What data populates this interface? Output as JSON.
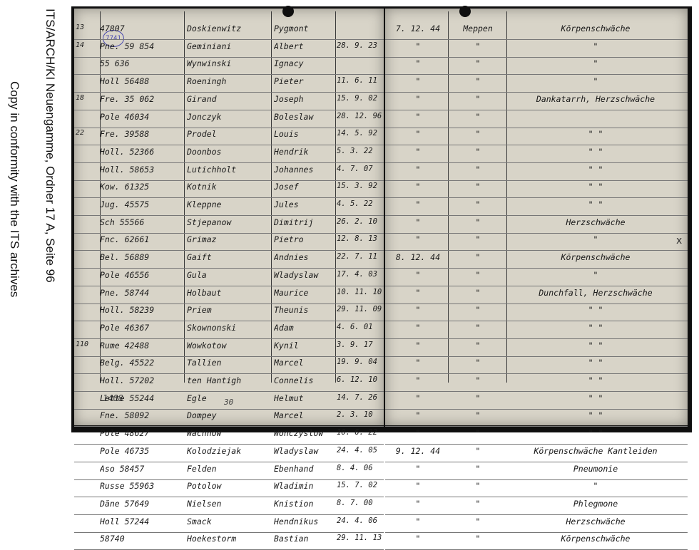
{
  "side_text": {
    "line1": "ITS/ARCH/KI Neuengamme, Ordner 17 A, Seite 96",
    "line2": "Copy in conformity with the ITS archives"
  },
  "stamp": "7741",
  "left_rows": [
    {
      "mark": "13",
      "number": "47807",
      "surname": "Doskienwitz",
      "firstname": "Pygmont",
      "dob": ""
    },
    {
      "mark": "14",
      "number": "Pne. 59 854",
      "surname": "Geminiani",
      "firstname": "Albert",
      "dob": "28. 9. 23"
    },
    {
      "mark": "",
      "number": "55 636",
      "surname": "Wynwinski",
      "firstname": "Ignacy",
      "dob": ""
    },
    {
      "mark": "",
      "number": "Holl 56488",
      "surname": "Roeningh",
      "firstname": "Pieter",
      "dob": "11. 6. 11"
    },
    {
      "mark": "18",
      "number": "Fre. 35 062",
      "surname": "Girand",
      "firstname": "Joseph",
      "dob": "15. 9. 02"
    },
    {
      "mark": "",
      "number": "Pole 46034",
      "surname": "Jonczyk",
      "firstname": "Boleslaw",
      "dob": "28. 12. 96"
    },
    {
      "mark": "22",
      "number": "Fre. 39588",
      "surname": "Prodel",
      "firstname": "Louis",
      "dob": "14. 5. 92"
    },
    {
      "mark": "",
      "number": "Holl. 52366",
      "surname": "Doonbos",
      "firstname": "Hendrik",
      "dob": "5. 3. 22"
    },
    {
      "mark": "",
      "number": "Holl. 58653",
      "surname": "Lutichholt",
      "firstname": "Johannes",
      "dob": "4. 7. 07"
    },
    {
      "mark": "",
      "number": "Kow. 61325",
      "surname": "Kotnik",
      "firstname": "Josef",
      "dob": "15. 3. 92"
    },
    {
      "mark": "",
      "number": "Jug. 45575",
      "surname": "Kleppne",
      "firstname": "Jules",
      "dob": "4. 5. 22"
    },
    {
      "mark": "",
      "number": "Sch 55566",
      "surname": "Stjepanow",
      "firstname": "Dimitrij",
      "dob": "26. 2. 10"
    },
    {
      "mark": "",
      "number": "Fnc. 62661",
      "surname": "Grimaz",
      "firstname": "Pietro",
      "dob": "12. 8. 13"
    },
    {
      "mark": "",
      "number": "Bel. 56889",
      "surname": "Gaift",
      "firstname": "Andnies",
      "dob": "22. 7. 11"
    },
    {
      "mark": "",
      "number": "Pole 46556",
      "surname": "Gula",
      "firstname": "Wladyslaw",
      "dob": "17. 4. 03"
    },
    {
      "mark": "",
      "number": "Pne. 58744",
      "surname": "Holbaut",
      "firstname": "Maurice",
      "dob": "10. 11. 10"
    },
    {
      "mark": "",
      "number": "Holl. 58239",
      "surname": "Priem",
      "firstname": "Theunis",
      "dob": "29. 11. 09"
    },
    {
      "mark": "",
      "number": "Pole 46367",
      "surname": "Skownonski",
      "firstname": "Adam",
      "dob": "4. 6. 01"
    },
    {
      "mark": "110",
      "number": "Rume 42488",
      "surname": "Wowkotow",
      "firstname": "Kynil",
      "dob": "3. 9. 17"
    },
    {
      "mark": "",
      "number": "Belg. 45522",
      "surname": "Tallien",
      "firstname": "Marcel",
      "dob": "19. 9. 04"
    },
    {
      "mark": "",
      "number": "Holl. 57202",
      "surname": "ten Hantigh",
      "firstname": "Connelis",
      "dob": "6. 12. 10"
    },
    {
      "mark": "",
      "number": "Lette 55244",
      "surname": "Egle",
      "firstname": "Helmut",
      "dob": "14. 7. 26"
    },
    {
      "mark": "",
      "number": "Fne. 58092",
      "surname": "Dompey",
      "firstname": "Marcel",
      "dob": "2. 3. 10"
    },
    {
      "mark": "",
      "number": "Pole 48627",
      "surname": "Wachnow",
      "firstname": "Wonczyslow",
      "dob": "10. 6. 22"
    },
    {
      "mark": "",
      "number": "Pole 46735",
      "surname": "Kolodziejak",
      "firstname": "Wladyslaw",
      "dob": "24. 4. 05"
    },
    {
      "mark": "",
      "number": "Aso 58457",
      "surname": "Felden",
      "firstname": "Ebenhand",
      "dob": "8. 4. 06"
    },
    {
      "mark": "",
      "number": "Russe 55963",
      "surname": "Potolow",
      "firstname": "Wladimin",
      "dob": "15. 7. 02"
    },
    {
      "mark": "",
      "number": "Däne 57649",
      "surname": "Nielsen",
      "firstname": "Knistion",
      "dob": "8. 7. 00"
    },
    {
      "mark": "",
      "number": "Holl 57244",
      "surname": "Smack",
      "firstname": "Hendnikus",
      "dob": "24. 4. 06"
    },
    {
      "mark": "",
      "number": "58740",
      "surname": "Hoekestorm",
      "firstname": "Bastian",
      "dob": "29. 11. 13"
    }
  ],
  "right_rows": [
    {
      "date": "7. 12. 44",
      "place": "Meppen",
      "cause": "Körpenschwäche"
    },
    {
      "date": "\"",
      "place": "\"",
      "cause": "\""
    },
    {
      "date": "\"",
      "place": "\"",
      "cause": "\""
    },
    {
      "date": "\"",
      "place": "\"",
      "cause": "\""
    },
    {
      "date": "\"",
      "place": "\"",
      "cause": "Dankatarrh, Herzschwäche"
    },
    {
      "date": "\"",
      "place": "\"",
      "cause": ""
    },
    {
      "date": "\"",
      "place": "\"",
      "cause": "\"   \""
    },
    {
      "date": "\"",
      "place": "\"",
      "cause": "\"   \""
    },
    {
      "date": "\"",
      "place": "\"",
      "cause": "\"   \""
    },
    {
      "date": "\"",
      "place": "\"",
      "cause": "\"   \""
    },
    {
      "date": "\"",
      "place": "\"",
      "cause": "\"   \""
    },
    {
      "date": "\"",
      "place": "\"",
      "cause": "Herzschwäche"
    },
    {
      "date": "\"",
      "place": "\"",
      "cause": "\""
    },
    {
      "date": "8. 12. 44",
      "place": "\"",
      "cause": "Körpenschwäche"
    },
    {
      "date": "\"",
      "place": "\"",
      "cause": "\""
    },
    {
      "date": "\"",
      "place": "\"",
      "cause": "Dunchfall, Herzschwäche"
    },
    {
      "date": "\"",
      "place": "\"",
      "cause": "\"   \""
    },
    {
      "date": "\"",
      "place": "\"",
      "cause": "\"   \""
    },
    {
      "date": "\"",
      "place": "\"",
      "cause": "\"   \""
    },
    {
      "date": "\"",
      "place": "\"",
      "cause": "\"   \""
    },
    {
      "date": "\"",
      "place": "\"",
      "cause": "\"   \""
    },
    {
      "date": "\"",
      "place": "\"",
      "cause": "\"   \""
    },
    {
      "date": "\"",
      "place": "\"",
      "cause": "\"   \""
    },
    {
      "date": "\"",
      "place": "\"",
      "cause": "\"   \""
    },
    {
      "date": "9. 12. 44",
      "place": "\"",
      "cause": "Körpenschwäche Kantleiden"
    },
    {
      "date": "\"",
      "place": "\"",
      "cause": "Pneumonie"
    },
    {
      "date": "\"",
      "place": "\"",
      "cause": "\""
    },
    {
      "date": "\"",
      "place": "\"",
      "cause": "Phlegmone"
    },
    {
      "date": "\"",
      "place": "\"",
      "cause": "Herzschwäche"
    },
    {
      "date": "\"",
      "place": "\"",
      "cause": "Körpenschwäche"
    }
  ],
  "footer": {
    "left_num": "1408",
    "center_num": "30"
  },
  "margin_mark": "x"
}
